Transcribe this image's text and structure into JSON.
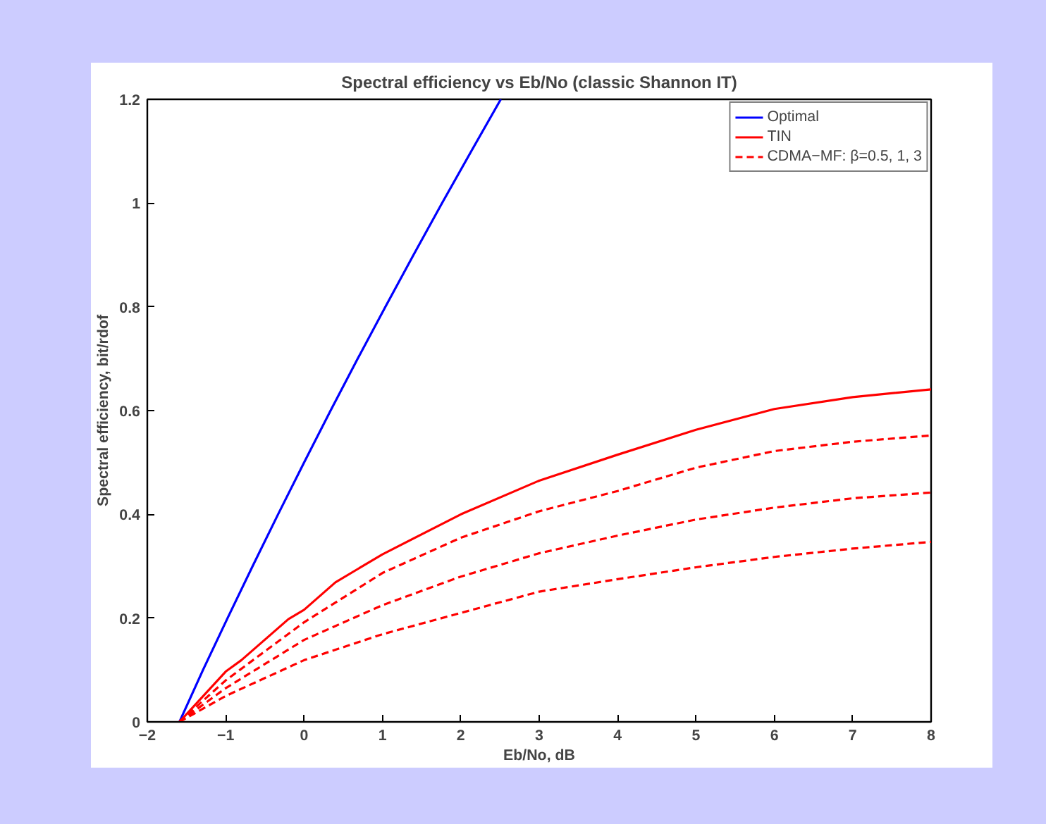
{
  "chart_data": {
    "type": "line",
    "title": "Spectral efficiency vs Eb/No (classic Shannon IT)",
    "xlabel": "Eb/No, dB",
    "ylabel": "Spectral efficiency, bit/rdof",
    "xlim": [
      -2,
      8
    ],
    "ylim": [
      0,
      1.2
    ],
    "xticks": [
      {
        "value": -2,
        "label": "−2"
      },
      {
        "value": -1,
        "label": "−1"
      },
      0,
      1,
      2,
      3,
      4,
      5,
      6,
      7,
      8
    ],
    "yticks": [
      0,
      0.2,
      0.4,
      0.6,
      0.8,
      1,
      1.2
    ],
    "grid": false,
    "legend": "top right",
    "marker": "none",
    "series": [
      {
        "name": "Optimal",
        "color": "#0000ff",
        "line_style": "solid",
        "x": [
          -1.59,
          -1.29,
          -0.976,
          -0.657,
          -0.332,
          0,
          0.338,
          0.684,
          1.037,
          1.396,
          1.761,
          2.133,
          2.51
        ],
        "values": [
          0,
          0.1,
          0.2,
          0.3,
          0.4,
          0.5,
          0.6,
          0.7,
          0.8,
          0.9,
          1.0,
          1.1,
          1.2
        ]
      },
      {
        "name": "TIN",
        "color": "#ff0000",
        "line_style": "solid",
        "x": [
          -1.59,
          -1,
          -0.8,
          -0.2,
          0,
          0.4,
          1,
          2,
          3,
          4,
          5,
          6,
          7,
          8
        ],
        "values": [
          0,
          0.097,
          0.119,
          0.198,
          0.216,
          0.269,
          0.323,
          0.4,
          0.465,
          0.515,
          0.563,
          0.603,
          0.626,
          0.641
        ]
      },
      {
        "name": "CDMA−MF: β=0.5, 1, 3",
        "color": "#ff0000",
        "line_style": "dashed",
        "x": [
          -1.59,
          -1,
          0,
          1,
          2,
          3,
          4,
          5,
          6,
          7,
          8
        ],
        "values": [
          0,
          0.08,
          0.192,
          0.287,
          0.355,
          0.406,
          0.445,
          0.49,
          0.522,
          0.54,
          0.552
        ]
      },
      {
        "color": "#ff0000",
        "line_style": "dashed",
        "x": [
          -1.59,
          -1,
          0,
          1,
          2,
          3,
          4,
          5,
          6,
          7,
          8
        ],
        "values": [
          0,
          0.065,
          0.158,
          0.225,
          0.28,
          0.325,
          0.359,
          0.39,
          0.413,
          0.431,
          0.442
        ]
      },
      {
        "color": "#ff0000",
        "line_style": "dashed",
        "x": [
          -1.59,
          -1,
          0,
          1,
          2,
          3,
          4,
          5,
          6,
          7,
          8
        ],
        "values": [
          0,
          0.05,
          0.119,
          0.169,
          0.21,
          0.251,
          0.275,
          0.298,
          0.318,
          0.334,
          0.347
        ]
      }
    ]
  }
}
